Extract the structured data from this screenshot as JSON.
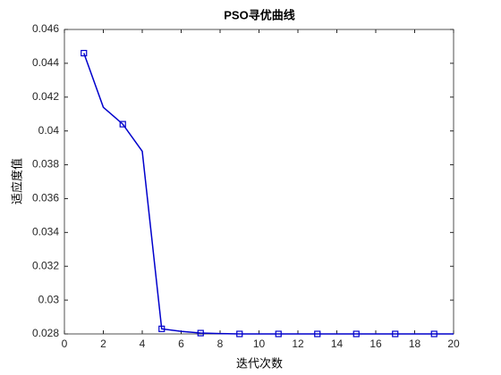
{
  "chart_data": {
    "type": "line",
    "title": "PSO寻优曲线",
    "xlabel": "迭代次数",
    "ylabel": "适应度值",
    "x": [
      1,
      2,
      3,
      4,
      5,
      6,
      7,
      8,
      9,
      10,
      11,
      12,
      13,
      14,
      15,
      16,
      17,
      18,
      19,
      20
    ],
    "series": [
      {
        "name": "PSO",
        "color": "#0000cc",
        "marker": "square",
        "marker_every": 2,
        "values": [
          0.0446,
          0.0414,
          0.0404,
          0.0388,
          0.0283,
          0.02815,
          0.02805,
          0.02802,
          0.028,
          0.028,
          0.028,
          0.028,
          0.028,
          0.028,
          0.028,
          0.028,
          0.028,
          0.028,
          0.028,
          0.028
        ]
      }
    ],
    "xlim": [
      0,
      20
    ],
    "xticks": [
      0,
      2,
      4,
      6,
      8,
      10,
      12,
      14,
      16,
      18,
      20
    ],
    "ylim": [
      0.028,
      0.046
    ],
    "yticks": [
      0.028,
      0.03,
      0.032,
      0.034,
      0.036,
      0.038,
      0.04,
      0.042,
      0.044,
      0.046
    ],
    "grid": false
  }
}
